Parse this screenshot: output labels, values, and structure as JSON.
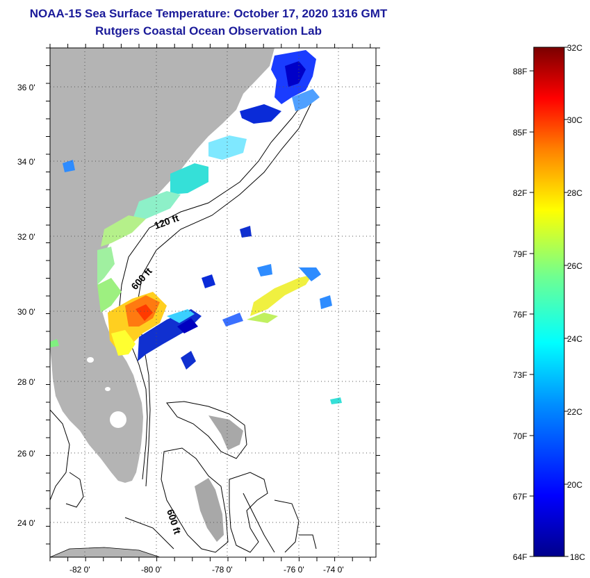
{
  "header": {
    "title": "NOAA-15 Sea Surface Temperature:  October 17, 2020 1316 GMT",
    "subtitle": "Rutgers Coastal Ocean Observation Lab"
  },
  "axes": {
    "lat_labels": [
      "36 0'",
      "34 0'",
      "32 0'",
      "30 0'",
      "28 0'",
      "26 0'",
      "24 0'"
    ],
    "lon_labels": [
      "-82 0'",
      "-80 0'",
      "-78 0'",
      "-76 0'",
      "-74 0'"
    ]
  },
  "contours": {
    "label_120": "120 ft",
    "label_600a": "600 ft",
    "label_600b": "600 ft"
  },
  "colorbar": {
    "celsius": [
      "32C",
      "30C",
      "28C",
      "26C",
      "24C",
      "22C",
      "20C",
      "18C"
    ],
    "fahrenheit": [
      "88F",
      "85F",
      "82F",
      "79F",
      "76F",
      "73F",
      "70F",
      "67F",
      "64F"
    ]
  },
  "colors": {
    "land": "#b4b4b4",
    "ocean": "#ffffff",
    "title": "#1a1a99"
  }
}
